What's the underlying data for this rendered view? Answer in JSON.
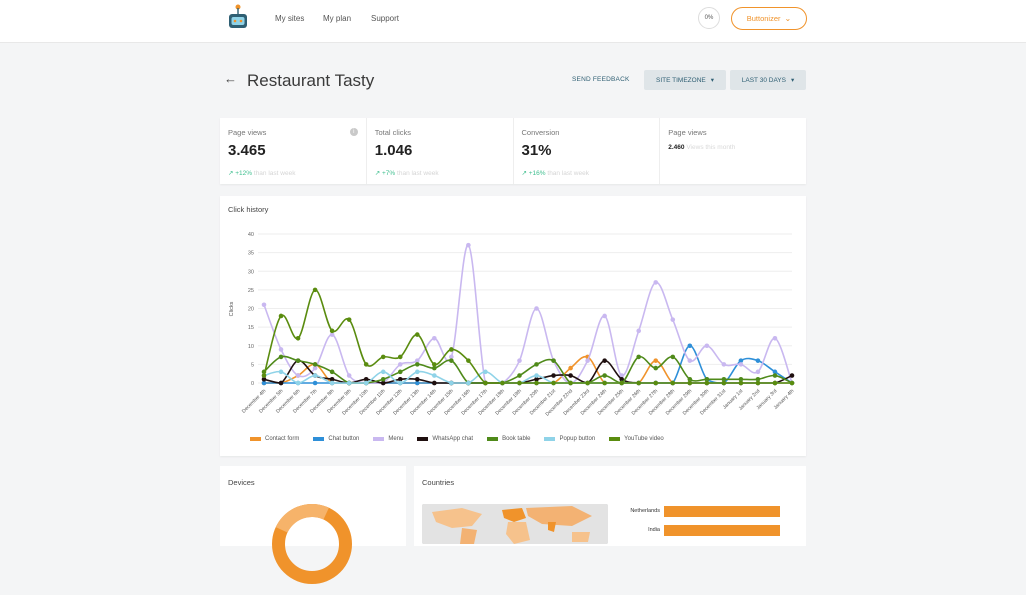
{
  "nav": {
    "items": [
      "My sites",
      "My plan",
      "Support"
    ],
    "progress": "0%",
    "account_button": "Buttonizer"
  },
  "header": {
    "title": "Restaurant Tasty",
    "send_feedback": "SEND FEEDBACK",
    "timezone_btn": "SITE TIMEZONE",
    "range_btn": "LAST 30 DAYS"
  },
  "stats": [
    {
      "label": "Page views",
      "value": "3.465",
      "trend": "+12%",
      "trend_suffix": "than last week"
    },
    {
      "label": "Total clicks",
      "value": "1.046",
      "trend": "+7%",
      "trend_suffix": "than last week"
    },
    {
      "label": "Conversion",
      "value": "31%",
      "trend": "+16%",
      "trend_suffix": "than last week"
    },
    {
      "label": "Page views",
      "value": "2.460",
      "value_suffix": "Views this month"
    }
  ],
  "devices": {
    "title": "Devices"
  },
  "countries": {
    "title": "Countries",
    "bars": [
      {
        "label": "Netherlands",
        "value": 1.0
      },
      {
        "label": "India",
        "value": 1.0
      }
    ]
  },
  "colors": {
    "accent": "#f0932b",
    "teal": "#2f5f73",
    "positive": "#3fbf8f"
  },
  "chart_data": {
    "type": "line",
    "title": "Click history",
    "ylabel": "Clicks",
    "ylim": [
      0,
      40
    ],
    "yticks": [
      0,
      5,
      10,
      15,
      20,
      25,
      30,
      35,
      40
    ],
    "categories": [
      "December 4th",
      "December 5th",
      "December 6th",
      "December 7th",
      "December 8th",
      "December 9th",
      "December 10th",
      "December 11th",
      "December 12th",
      "December 13th",
      "December 14th",
      "December 15th",
      "December 16th",
      "December 17th",
      "December 18th",
      "December 19th",
      "December 20th",
      "December 21st",
      "December 22nd",
      "December 23rd",
      "December 24th",
      "December 25th",
      "December 26th",
      "December 27th",
      "December 28th",
      "December 29th",
      "December 30th",
      "December 31st",
      "January 1st",
      "January 2nd",
      "January 3rd",
      "January 4th"
    ],
    "series": [
      {
        "name": "Contact form",
        "color": "#f0932b",
        "values": [
          0,
          0,
          2,
          5,
          0,
          0,
          0,
          0,
          0,
          0,
          0,
          0,
          0,
          0,
          0,
          0,
          0,
          0,
          4,
          7,
          0,
          0,
          0,
          6,
          0,
          0,
          0,
          0,
          0,
          0,
          0,
          0
        ]
      },
      {
        "name": "Chat button",
        "color": "#2e8fd8",
        "values": [
          0,
          0,
          0,
          0,
          0,
          0,
          0,
          0,
          0,
          0,
          0,
          0,
          0,
          0,
          0,
          0,
          0,
          0,
          0,
          0,
          0,
          0,
          0,
          0,
          0,
          10,
          1,
          0,
          6,
          6,
          3,
          0
        ]
      },
      {
        "name": "Menu",
        "color": "#c9b8f0",
        "values": [
          21,
          9,
          2,
          4,
          13,
          2,
          0,
          0,
          5,
          6,
          12,
          7,
          37,
          0,
          0,
          6,
          20,
          6,
          0,
          6,
          18,
          2,
          14,
          27,
          17,
          6,
          10,
          5,
          5,
          3,
          12,
          0
        ]
      },
      {
        "name": "WhatsApp chat",
        "color": "#1f0f0f",
        "values": [
          1,
          0,
          6,
          2,
          1,
          0,
          1,
          0,
          1,
          1,
          0,
          0,
          0,
          0,
          0,
          0,
          1,
          2,
          2,
          0,
          6,
          1,
          0,
          0,
          0,
          0,
          0,
          0,
          0,
          0,
          0,
          2
        ]
      },
      {
        "name": "Book table",
        "color": "#4f8a1a",
        "values": [
          3,
          7,
          6,
          5,
          3,
          0,
          0,
          1,
          3,
          5,
          4,
          6,
          0,
          0,
          0,
          2,
          5,
          6,
          0,
          0,
          2,
          0,
          7,
          4,
          7,
          1,
          1,
          1,
          1,
          1,
          2,
          0
        ]
      },
      {
        "name": "Popup button",
        "color": "#8fd3e8",
        "values": [
          2,
          3,
          0,
          2,
          0,
          0,
          0,
          3,
          0,
          3,
          2,
          0,
          0,
          3,
          0,
          0,
          2,
          0,
          0,
          0,
          0,
          0,
          0,
          0,
          0,
          0,
          0,
          0,
          0,
          0,
          0,
          0
        ]
      },
      {
        "name": "YouTube video",
        "color": "#5a8c0f",
        "values": [
          2,
          18,
          12,
          25,
          14,
          17,
          5,
          7,
          7,
          13,
          5,
          9,
          6,
          0,
          0,
          0,
          0,
          0,
          0,
          0,
          0,
          0,
          0,
          0,
          0,
          0,
          0,
          0,
          0,
          0,
          0,
          0
        ]
      }
    ],
    "legend_position": "bottom",
    "grid": true
  }
}
